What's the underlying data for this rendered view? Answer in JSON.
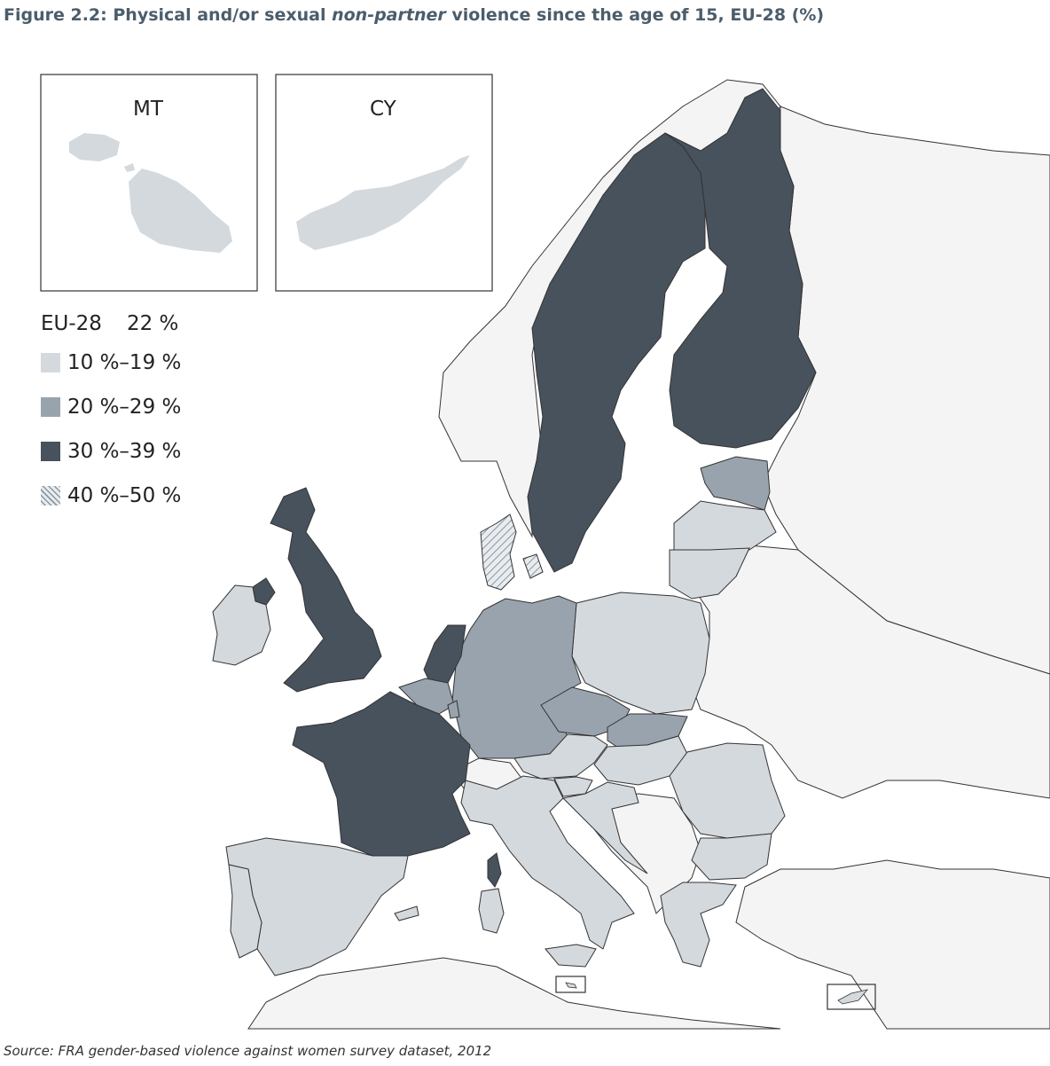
{
  "title": {
    "prefix": "Figure 2.2: Physical and/or sexual ",
    "italic": "non-partner",
    "suffix": " violence since the age of 15, EU-28 (%)"
  },
  "insets": [
    {
      "code": "MT"
    },
    {
      "code": "CY"
    }
  ],
  "legend": {
    "eu_label": "EU-28",
    "eu_value": "22 %",
    "classes": [
      {
        "label": "10 %–19 %",
        "color": "#d4d9de"
      },
      {
        "label": "20 %–29 %",
        "color": "#98a3ad"
      },
      {
        "label": "30 %–39 %",
        "color": "#47525d"
      },
      {
        "label": "40 %–50 %",
        "color": "hatched"
      }
    ]
  },
  "countries": {
    "class_10_19": [
      "ES",
      "PT",
      "IE",
      "IT",
      "AT",
      "SI",
      "HU",
      "HR",
      "RO",
      "BG",
      "GR",
      "PL",
      "LT",
      "LV",
      "MT",
      "CY"
    ],
    "class_20_29": [
      "DE",
      "CZ",
      "SK",
      "EE",
      "BE",
      "LU"
    ],
    "class_30_39": [
      "FR",
      "UK",
      "NL",
      "SE",
      "FI"
    ],
    "class_40_50": [
      "DK"
    ]
  },
  "colors": {
    "non_eu": "#f4f4f4",
    "sea": "#ffffff",
    "border": "#333333"
  },
  "source": "Source:  FRA gender-based violence against women survey dataset, 2012"
}
